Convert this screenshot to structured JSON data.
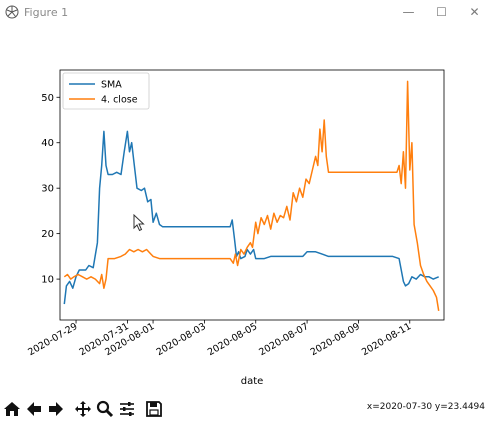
{
  "window": {
    "title": "Figure 1",
    "minimize_glyph": "—",
    "maximize_glyph": "☐",
    "close_glyph": "✕"
  },
  "toolbar": {
    "buttons": [
      {
        "name": "home-icon"
      },
      {
        "name": "back-icon"
      },
      {
        "name": "forward-icon"
      },
      {
        "name": "pan-icon"
      },
      {
        "name": "zoom-icon"
      },
      {
        "name": "configure-subplots-icon"
      },
      {
        "name": "save-icon"
      }
    ],
    "coordinates": "x=2020-07-30 y=23.4494"
  },
  "chart_data": {
    "type": "line",
    "xlabel": "date",
    "ylabel": "",
    "title": "",
    "xlim": [
      "2020-07-28T09:00",
      "2020-08-12T08:00"
    ],
    "ylim": [
      1,
      56
    ],
    "x_ticks": [
      "2020-07-29",
      "2020-07-31",
      "2020-08-01",
      "2020-08-03",
      "2020-08-05",
      "2020-08-07",
      "2020-08-09",
      "2020-08-11"
    ],
    "y_ticks": [
      10,
      20,
      30,
      40,
      50
    ],
    "legend_position": "upper-left",
    "series": [
      {
        "name": "SMA",
        "color": "#1f77b4",
        "points": [
          [
            "2020-07-28T13:00",
            4.5
          ],
          [
            "2020-07-28T15:00",
            8.5
          ],
          [
            "2020-07-28T18:00",
            9.5
          ],
          [
            "2020-07-28T21:00",
            8.0
          ],
          [
            "2020-07-29T00:00",
            10.5
          ],
          [
            "2020-07-29T03:00",
            12.0
          ],
          [
            "2020-07-29T06:00",
            12.0
          ],
          [
            "2020-07-29T09:00",
            12.0
          ],
          [
            "2020-07-29T12:00",
            13.0
          ],
          [
            "2020-07-29T16:00",
            12.5
          ],
          [
            "2020-07-29T20:00",
            18.0
          ],
          [
            "2020-07-29T22:00",
            30.0
          ],
          [
            "2020-07-30T00:00",
            35.0
          ],
          [
            "2020-07-30T02:00",
            42.5
          ],
          [
            "2020-07-30T04:00",
            35.0
          ],
          [
            "2020-07-30T06:00",
            33.0
          ],
          [
            "2020-07-30T10:00",
            33.0
          ],
          [
            "2020-07-30T14:00",
            33.5
          ],
          [
            "2020-07-30T18:00",
            33.0
          ],
          [
            "2020-07-30T21:00",
            38.0
          ],
          [
            "2020-07-31T00:00",
            42.5
          ],
          [
            "2020-07-31T02:00",
            38.0
          ],
          [
            "2020-07-31T04:00",
            40.0
          ],
          [
            "2020-07-31T06:00",
            36.0
          ],
          [
            "2020-07-31T09:00",
            30.0
          ],
          [
            "2020-07-31T13:00",
            29.5
          ],
          [
            "2020-07-31T16:00",
            30.0
          ],
          [
            "2020-07-31T19:00",
            27.0
          ],
          [
            "2020-07-31T22:00",
            27.5
          ],
          [
            "2020-08-01T00:00",
            22.5
          ],
          [
            "2020-08-01T03:00",
            24.5
          ],
          [
            "2020-08-01T06:00",
            22.0
          ],
          [
            "2020-08-01T09:00",
            21.5
          ],
          [
            "2020-08-01T18:00",
            21.5
          ],
          [
            "2020-08-02T12:00",
            21.5
          ],
          [
            "2020-08-03T06:00",
            21.5
          ],
          [
            "2020-08-03T18:00",
            21.5
          ],
          [
            "2020-08-04T00:00",
            21.5
          ],
          [
            "2020-08-04T02:00",
            23.0
          ],
          [
            "2020-08-04T04:00",
            19.0
          ],
          [
            "2020-08-04T06:00",
            15.0
          ],
          [
            "2020-08-04T08:00",
            16.0
          ],
          [
            "2020-08-04T10:00",
            14.5
          ],
          [
            "2020-08-04T14:00",
            15.0
          ],
          [
            "2020-08-04T16:00",
            16.5
          ],
          [
            "2020-08-04T19:00",
            15.5
          ],
          [
            "2020-08-04T22:00",
            16.5
          ],
          [
            "2020-08-05T00:00",
            14.5
          ],
          [
            "2020-08-05T04:00",
            14.5
          ],
          [
            "2020-08-05T08:00",
            14.5
          ],
          [
            "2020-08-05T14:00",
            15.0
          ],
          [
            "2020-08-06T00:00",
            15.0
          ],
          [
            "2020-08-06T12:00",
            15.0
          ],
          [
            "2020-08-06T20:00",
            15.0
          ],
          [
            "2020-08-07T00:00",
            16.0
          ],
          [
            "2020-08-07T08:00",
            16.0
          ],
          [
            "2020-08-07T14:00",
            15.5
          ],
          [
            "2020-08-07T20:00",
            15.0
          ],
          [
            "2020-08-08T08:00",
            15.0
          ],
          [
            "2020-08-08T20:00",
            15.0
          ],
          [
            "2020-08-09T08:00",
            15.0
          ],
          [
            "2020-08-09T20:00",
            15.0
          ],
          [
            "2020-08-10T08:00",
            15.0
          ],
          [
            "2020-08-10T14:00",
            14.5
          ],
          [
            "2020-08-10T18:00",
            9.5
          ],
          [
            "2020-08-10T20:00",
            8.5
          ],
          [
            "2020-08-10T23:00",
            9.0
          ],
          [
            "2020-08-11T02:00",
            10.5
          ],
          [
            "2020-08-11T06:00",
            10.0
          ],
          [
            "2020-08-11T10:00",
            11.0
          ],
          [
            "2020-08-11T14:00",
            10.5
          ],
          [
            "2020-08-11T18:00",
            10.5
          ],
          [
            "2020-08-11T22:00",
            10.0
          ],
          [
            "2020-08-12T03:00",
            10.5
          ]
        ]
      },
      {
        "name": "4. close",
        "color": "#ff7f0e",
        "points": [
          [
            "2020-07-28T13:00",
            10.5
          ],
          [
            "2020-07-28T16:00",
            11.0
          ],
          [
            "2020-07-28T19:00",
            10.0
          ],
          [
            "2020-07-28T22:00",
            10.5
          ],
          [
            "2020-07-29T02:00",
            11.0
          ],
          [
            "2020-07-29T06:00",
            10.5
          ],
          [
            "2020-07-29T10:00",
            10.0
          ],
          [
            "2020-07-29T14:00",
            10.5
          ],
          [
            "2020-07-29T18:00",
            10.0
          ],
          [
            "2020-07-29T22:00",
            9.0
          ],
          [
            "2020-07-30T00:00",
            11.0
          ],
          [
            "2020-07-30T02:00",
            8.0
          ],
          [
            "2020-07-30T04:00",
            10.0
          ],
          [
            "2020-07-30T06:00",
            14.5
          ],
          [
            "2020-07-30T12:00",
            14.5
          ],
          [
            "2020-07-30T18:00",
            15.0
          ],
          [
            "2020-07-30T22:00",
            15.5
          ],
          [
            "2020-07-31T02:00",
            16.5
          ],
          [
            "2020-07-31T06:00",
            16.0
          ],
          [
            "2020-07-31T10:00",
            16.5
          ],
          [
            "2020-07-31T14:00",
            16.0
          ],
          [
            "2020-07-31T18:00",
            16.5
          ],
          [
            "2020-07-31T22:00",
            15.5
          ],
          [
            "2020-08-01T00:00",
            15.0
          ],
          [
            "2020-08-01T06:00",
            14.5
          ],
          [
            "2020-08-01T18:00",
            14.5
          ],
          [
            "2020-08-02T12:00",
            14.5
          ],
          [
            "2020-08-03T06:00",
            14.5
          ],
          [
            "2020-08-03T18:00",
            14.5
          ],
          [
            "2020-08-04T00:00",
            14.5
          ],
          [
            "2020-08-04T03:00",
            13.5
          ],
          [
            "2020-08-04T05:00",
            15.5
          ],
          [
            "2020-08-04T07:00",
            13.0
          ],
          [
            "2020-08-04T10:00",
            16.5
          ],
          [
            "2020-08-04T13:00",
            15.5
          ],
          [
            "2020-08-04T16:00",
            17.0
          ],
          [
            "2020-08-04T19:00",
            18.0
          ],
          [
            "2020-08-04T21:00",
            17.0
          ],
          [
            "2020-08-05T00:00",
            22.5
          ],
          [
            "2020-08-05T02:00",
            20.0
          ],
          [
            "2020-08-05T05:00",
            23.5
          ],
          [
            "2020-08-05T08:00",
            22.0
          ],
          [
            "2020-08-05T11:00",
            24.0
          ],
          [
            "2020-08-05T14:00",
            21.0
          ],
          [
            "2020-08-05T17:00",
            24.5
          ],
          [
            "2020-08-05T20:00",
            22.5
          ],
          [
            "2020-08-05T23:00",
            24.0
          ],
          [
            "2020-08-06T02:00",
            23.5
          ],
          [
            "2020-08-06T05:00",
            26.0
          ],
          [
            "2020-08-06T08:00",
            23.0
          ],
          [
            "2020-08-06T11:00",
            29.0
          ],
          [
            "2020-08-06T14:00",
            27.0
          ],
          [
            "2020-08-06T17:00",
            30.0
          ],
          [
            "2020-08-06T20:00",
            28.0
          ],
          [
            "2020-08-06T23:00",
            32.0
          ],
          [
            "2020-08-07T02:00",
            31.0
          ],
          [
            "2020-08-07T05:00",
            34.0
          ],
          [
            "2020-08-07T08:00",
            37.0
          ],
          [
            "2020-08-07T10:00",
            35.0
          ],
          [
            "2020-08-07T12:00",
            43.0
          ],
          [
            "2020-08-07T14:00",
            38.0
          ],
          [
            "2020-08-07T16:00",
            45.0
          ],
          [
            "2020-08-07T18:00",
            37.0
          ],
          [
            "2020-08-07T20:00",
            33.5
          ],
          [
            "2020-08-08T06:00",
            33.5
          ],
          [
            "2020-08-08T18:00",
            33.5
          ],
          [
            "2020-08-09T12:00",
            33.5
          ],
          [
            "2020-08-10T06:00",
            33.5
          ],
          [
            "2020-08-10T12:00",
            33.5
          ],
          [
            "2020-08-10T14:00",
            35.0
          ],
          [
            "2020-08-10T16:00",
            31.0
          ],
          [
            "2020-08-10T18:00",
            38.0
          ],
          [
            "2020-08-10T20:00",
            30.0
          ],
          [
            "2020-08-10T22:00",
            53.5
          ],
          [
            "2020-08-11T00:00",
            34.0
          ],
          [
            "2020-08-11T02:00",
            40.0
          ],
          [
            "2020-08-11T04:00",
            22.0
          ],
          [
            "2020-08-11T07:00",
            18.0
          ],
          [
            "2020-08-11T10:00",
            13.0
          ],
          [
            "2020-08-11T13:00",
            11.0
          ],
          [
            "2020-08-11T16:00",
            9.5
          ],
          [
            "2020-08-11T19:00",
            8.5
          ],
          [
            "2020-08-11T22:00",
            7.5
          ],
          [
            "2020-08-12T01:00",
            6.0
          ],
          [
            "2020-08-12T03:00",
            3.0
          ]
        ]
      }
    ]
  }
}
